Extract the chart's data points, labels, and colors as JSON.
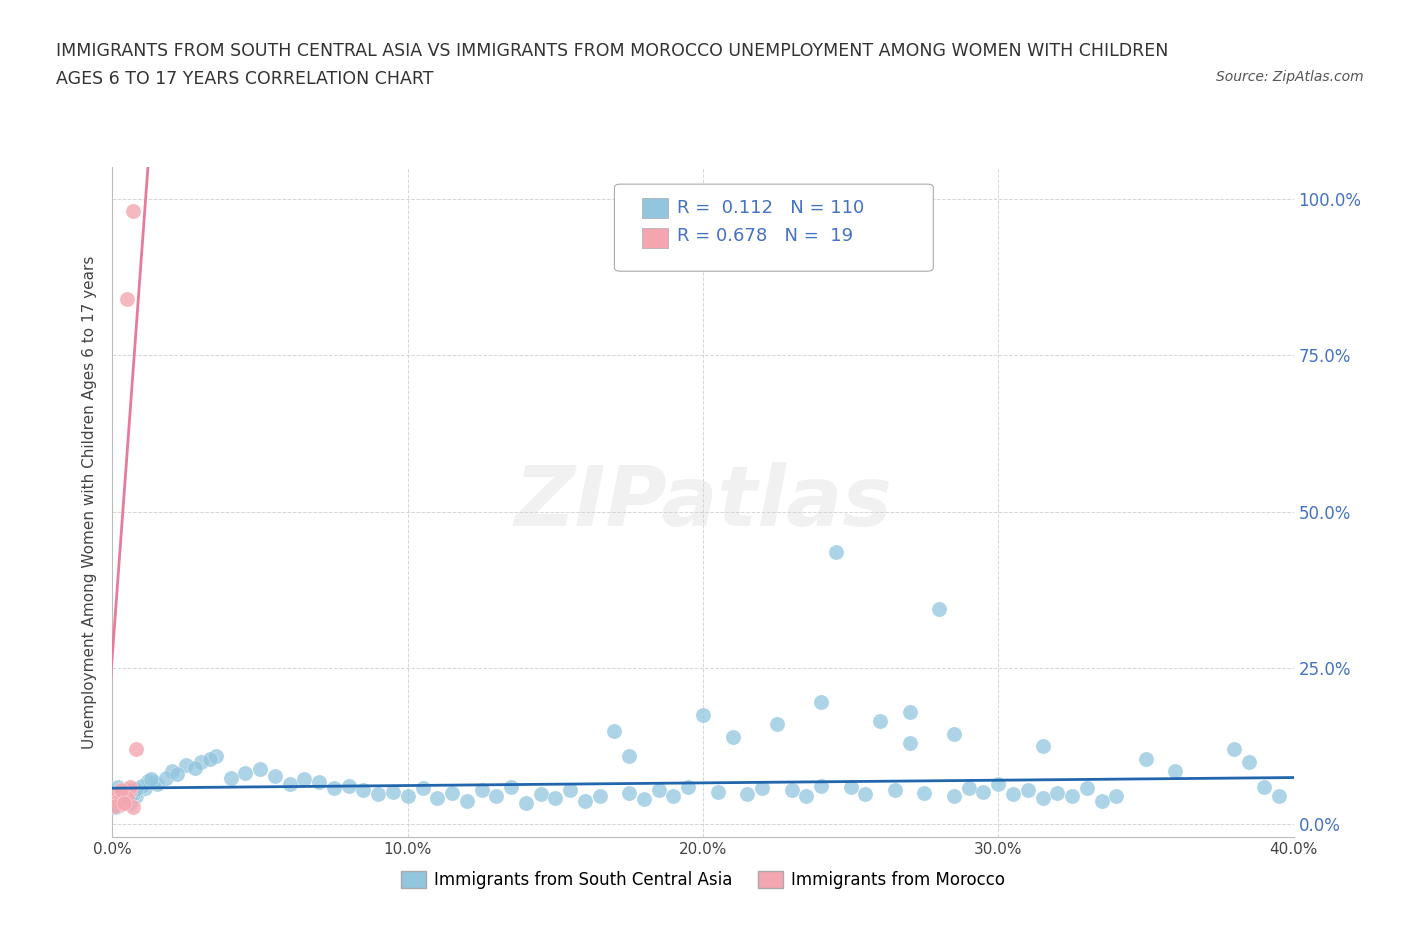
{
  "title_line1": "IMMIGRANTS FROM SOUTH CENTRAL ASIA VS IMMIGRANTS FROM MOROCCO UNEMPLOYMENT AMONG WOMEN WITH CHILDREN",
  "title_line2": "AGES 6 TO 17 YEARS CORRELATION CHART",
  "source_text": "Source: ZipAtlas.com",
  "ylabel": "Unemployment Among Women with Children Ages 6 to 17 years",
  "xlim": [
    0.0,
    0.4
  ],
  "ylim": [
    -0.02,
    1.05
  ],
  "x_ticks": [
    0.0,
    0.1,
    0.2,
    0.3,
    0.4
  ],
  "y_ticks": [
    0.0,
    0.25,
    0.5,
    0.75,
    1.0
  ],
  "x_tick_labels": [
    "0.0%",
    "10.0%",
    "20.0%",
    "30.0%",
    "40.0%"
  ],
  "y_tick_labels_right": [
    "0.0%",
    "25.0%",
    "50.0%",
    "75.0%",
    "100.0%"
  ],
  "color_blue": "#92C5DE",
  "color_pink": "#F4A6B0",
  "color_blue_line": "#2166AC",
  "color_pink_line": "#E87B9A",
  "legend_blue_r": "0.112",
  "legend_blue_n": "110",
  "legend_pink_r": "0.678",
  "legend_pink_n": "19",
  "watermark": "ZIPatlas",
  "background_color": "#ffffff",
  "grid_color": "#cccccc",
  "legend_label_blue": "Immigrants from South Central Asia",
  "legend_label_pink": "Immigrants from Morocco",
  "blue_scatter_x": [
    0.005,
    0.008,
    0.002,
    0.001,
    0.012,
    0.003,
    0.006,
    0.009,
    0.015,
    0.004,
    0.007,
    0.011,
    0.003,
    0.002,
    0.008,
    0.014,
    0.006,
    0.009,
    0.003,
    0.001,
    0.005,
    0.01,
    0.002,
    0.007,
    0.004,
    0.013,
    0.006,
    0.001,
    0.008,
    0.003,
    0.02,
    0.025,
    0.018,
    0.03,
    0.035,
    0.022,
    0.028,
    0.033,
    0.04,
    0.045,
    0.05,
    0.055,
    0.06,
    0.065,
    0.07,
    0.075,
    0.08,
    0.085,
    0.09,
    0.095,
    0.1,
    0.105,
    0.11,
    0.115,
    0.12,
    0.125,
    0.13,
    0.135,
    0.14,
    0.145,
    0.15,
    0.155,
    0.16,
    0.165,
    0.17,
    0.175,
    0.18,
    0.185,
    0.19,
    0.195,
    0.2,
    0.205,
    0.21,
    0.215,
    0.22,
    0.225,
    0.23,
    0.235,
    0.24,
    0.245,
    0.25,
    0.255,
    0.26,
    0.265,
    0.27,
    0.275,
    0.28,
    0.285,
    0.29,
    0.295,
    0.3,
    0.305,
    0.31,
    0.315,
    0.32,
    0.325,
    0.33,
    0.335,
    0.34,
    0.38,
    0.385,
    0.39,
    0.395,
    0.285,
    0.24,
    0.175,
    0.315,
    0.27,
    0.35,
    0.36
  ],
  "blue_scatter_y": [
    0.055,
    0.045,
    0.06,
    0.04,
    0.07,
    0.035,
    0.05,
    0.055,
    0.065,
    0.04,
    0.048,
    0.058,
    0.038,
    0.042,
    0.052,
    0.068,
    0.035,
    0.058,
    0.032,
    0.038,
    0.042,
    0.062,
    0.03,
    0.048,
    0.036,
    0.072,
    0.044,
    0.028,
    0.056,
    0.034,
    0.085,
    0.095,
    0.075,
    0.1,
    0.11,
    0.08,
    0.09,
    0.105,
    0.075,
    0.082,
    0.088,
    0.078,
    0.065,
    0.072,
    0.068,
    0.058,
    0.062,
    0.055,
    0.048,
    0.052,
    0.045,
    0.058,
    0.042,
    0.05,
    0.038,
    0.055,
    0.045,
    0.06,
    0.035,
    0.048,
    0.042,
    0.055,
    0.038,
    0.045,
    0.15,
    0.05,
    0.04,
    0.055,
    0.045,
    0.06,
    0.175,
    0.052,
    0.14,
    0.048,
    0.058,
    0.16,
    0.055,
    0.045,
    0.062,
    0.435,
    0.06,
    0.048,
    0.165,
    0.055,
    0.18,
    0.05,
    0.345,
    0.045,
    0.058,
    0.052,
    0.065,
    0.048,
    0.055,
    0.042,
    0.05,
    0.045,
    0.058,
    0.038,
    0.045,
    0.12,
    0.1,
    0.06,
    0.045,
    0.145,
    0.195,
    0.11,
    0.125,
    0.13,
    0.105,
    0.085
  ],
  "pink_scatter_x": [
    0.002,
    0.004,
    0.006,
    0.001,
    0.003,
    0.008,
    0.005,
    0.007,
    0.002,
    0.004,
    0.001,
    0.003,
    0.006,
    0.002,
    0.005,
    0.001,
    0.003,
    0.007,
    0.004
  ],
  "pink_scatter_y": [
    0.042,
    0.038,
    0.055,
    0.04,
    0.05,
    0.12,
    0.84,
    0.98,
    0.045,
    0.035,
    0.048,
    0.032,
    0.06,
    0.038,
    0.042,
    0.03,
    0.055,
    0.028,
    0.035
  ],
  "blue_trend_start_x": 0.0,
  "blue_trend_end_x": 0.4,
  "blue_trend_start_y": 0.058,
  "blue_trend_end_y": 0.075,
  "pink_trend_start_x": -0.005,
  "pink_trend_end_x": 0.012,
  "pink_trend_full_start_x": -0.005,
  "pink_trend_full_end_x": 0.013
}
